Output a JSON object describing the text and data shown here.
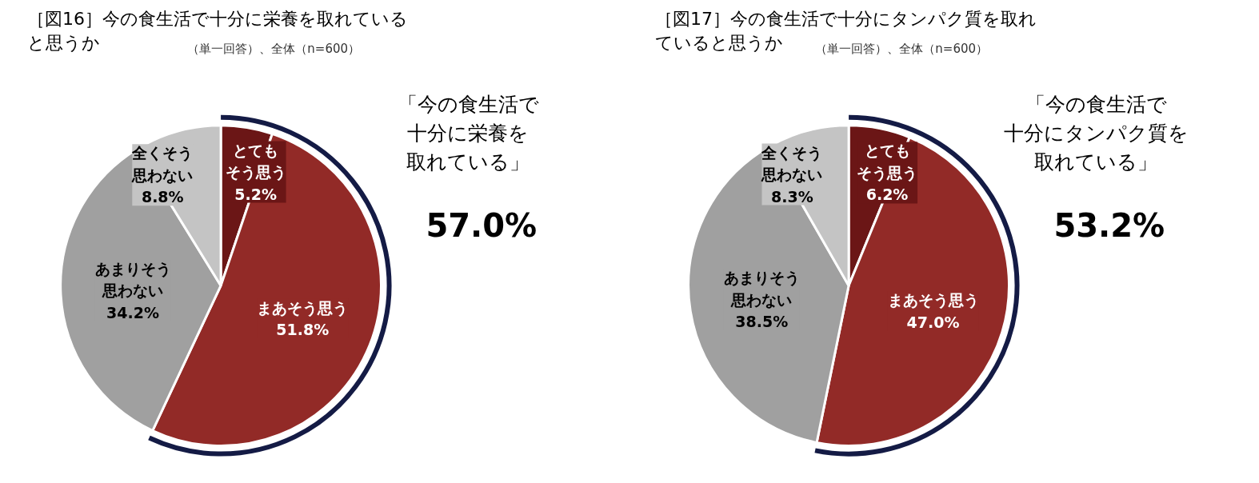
{
  "chart_data": [
    {
      "type": "pie",
      "title": "［図16］今の食生活で十分に栄養を取れていると思うか",
      "subtitle": "（単一回答）、全体（n=600）",
      "categories": [
        "とてもそう思う",
        "まあそう思う",
        "あまりそう思わない",
        "全くそう思わない"
      ],
      "values": [
        5.2,
        51.8,
        34.2,
        8.8
      ],
      "value_labels": [
        "5.2%",
        "51.8%",
        "34.2%",
        "8.8%"
      ],
      "colors": [
        "#6b1616",
        "#922a27",
        "#a0a0a0",
        "#c4c4c4"
      ],
      "annotations": [
        "「今の食生活で十分に栄養を取れている」",
        "57.0%"
      ]
    },
    {
      "type": "pie",
      "title": "［図17］今の食生活で十分にタンパク質を取れていると思うか",
      "subtitle": "（単一回答）、全体（n=600）",
      "categories": [
        "とてもそう思う",
        "まあそう思う",
        "あまりそう思わない",
        "全くそう思わない"
      ],
      "values": [
        6.2,
        47.0,
        38.5,
        8.3
      ],
      "value_labels": [
        "6.2%",
        "47.0%",
        "38.5%",
        "8.3%"
      ],
      "colors": [
        "#6b1616",
        "#922a27",
        "#a0a0a0",
        "#c4c4c4"
      ],
      "annotations": [
        "「今の食生活で十分にタンパク質を取れている」",
        "53.2%"
      ]
    }
  ]
}
